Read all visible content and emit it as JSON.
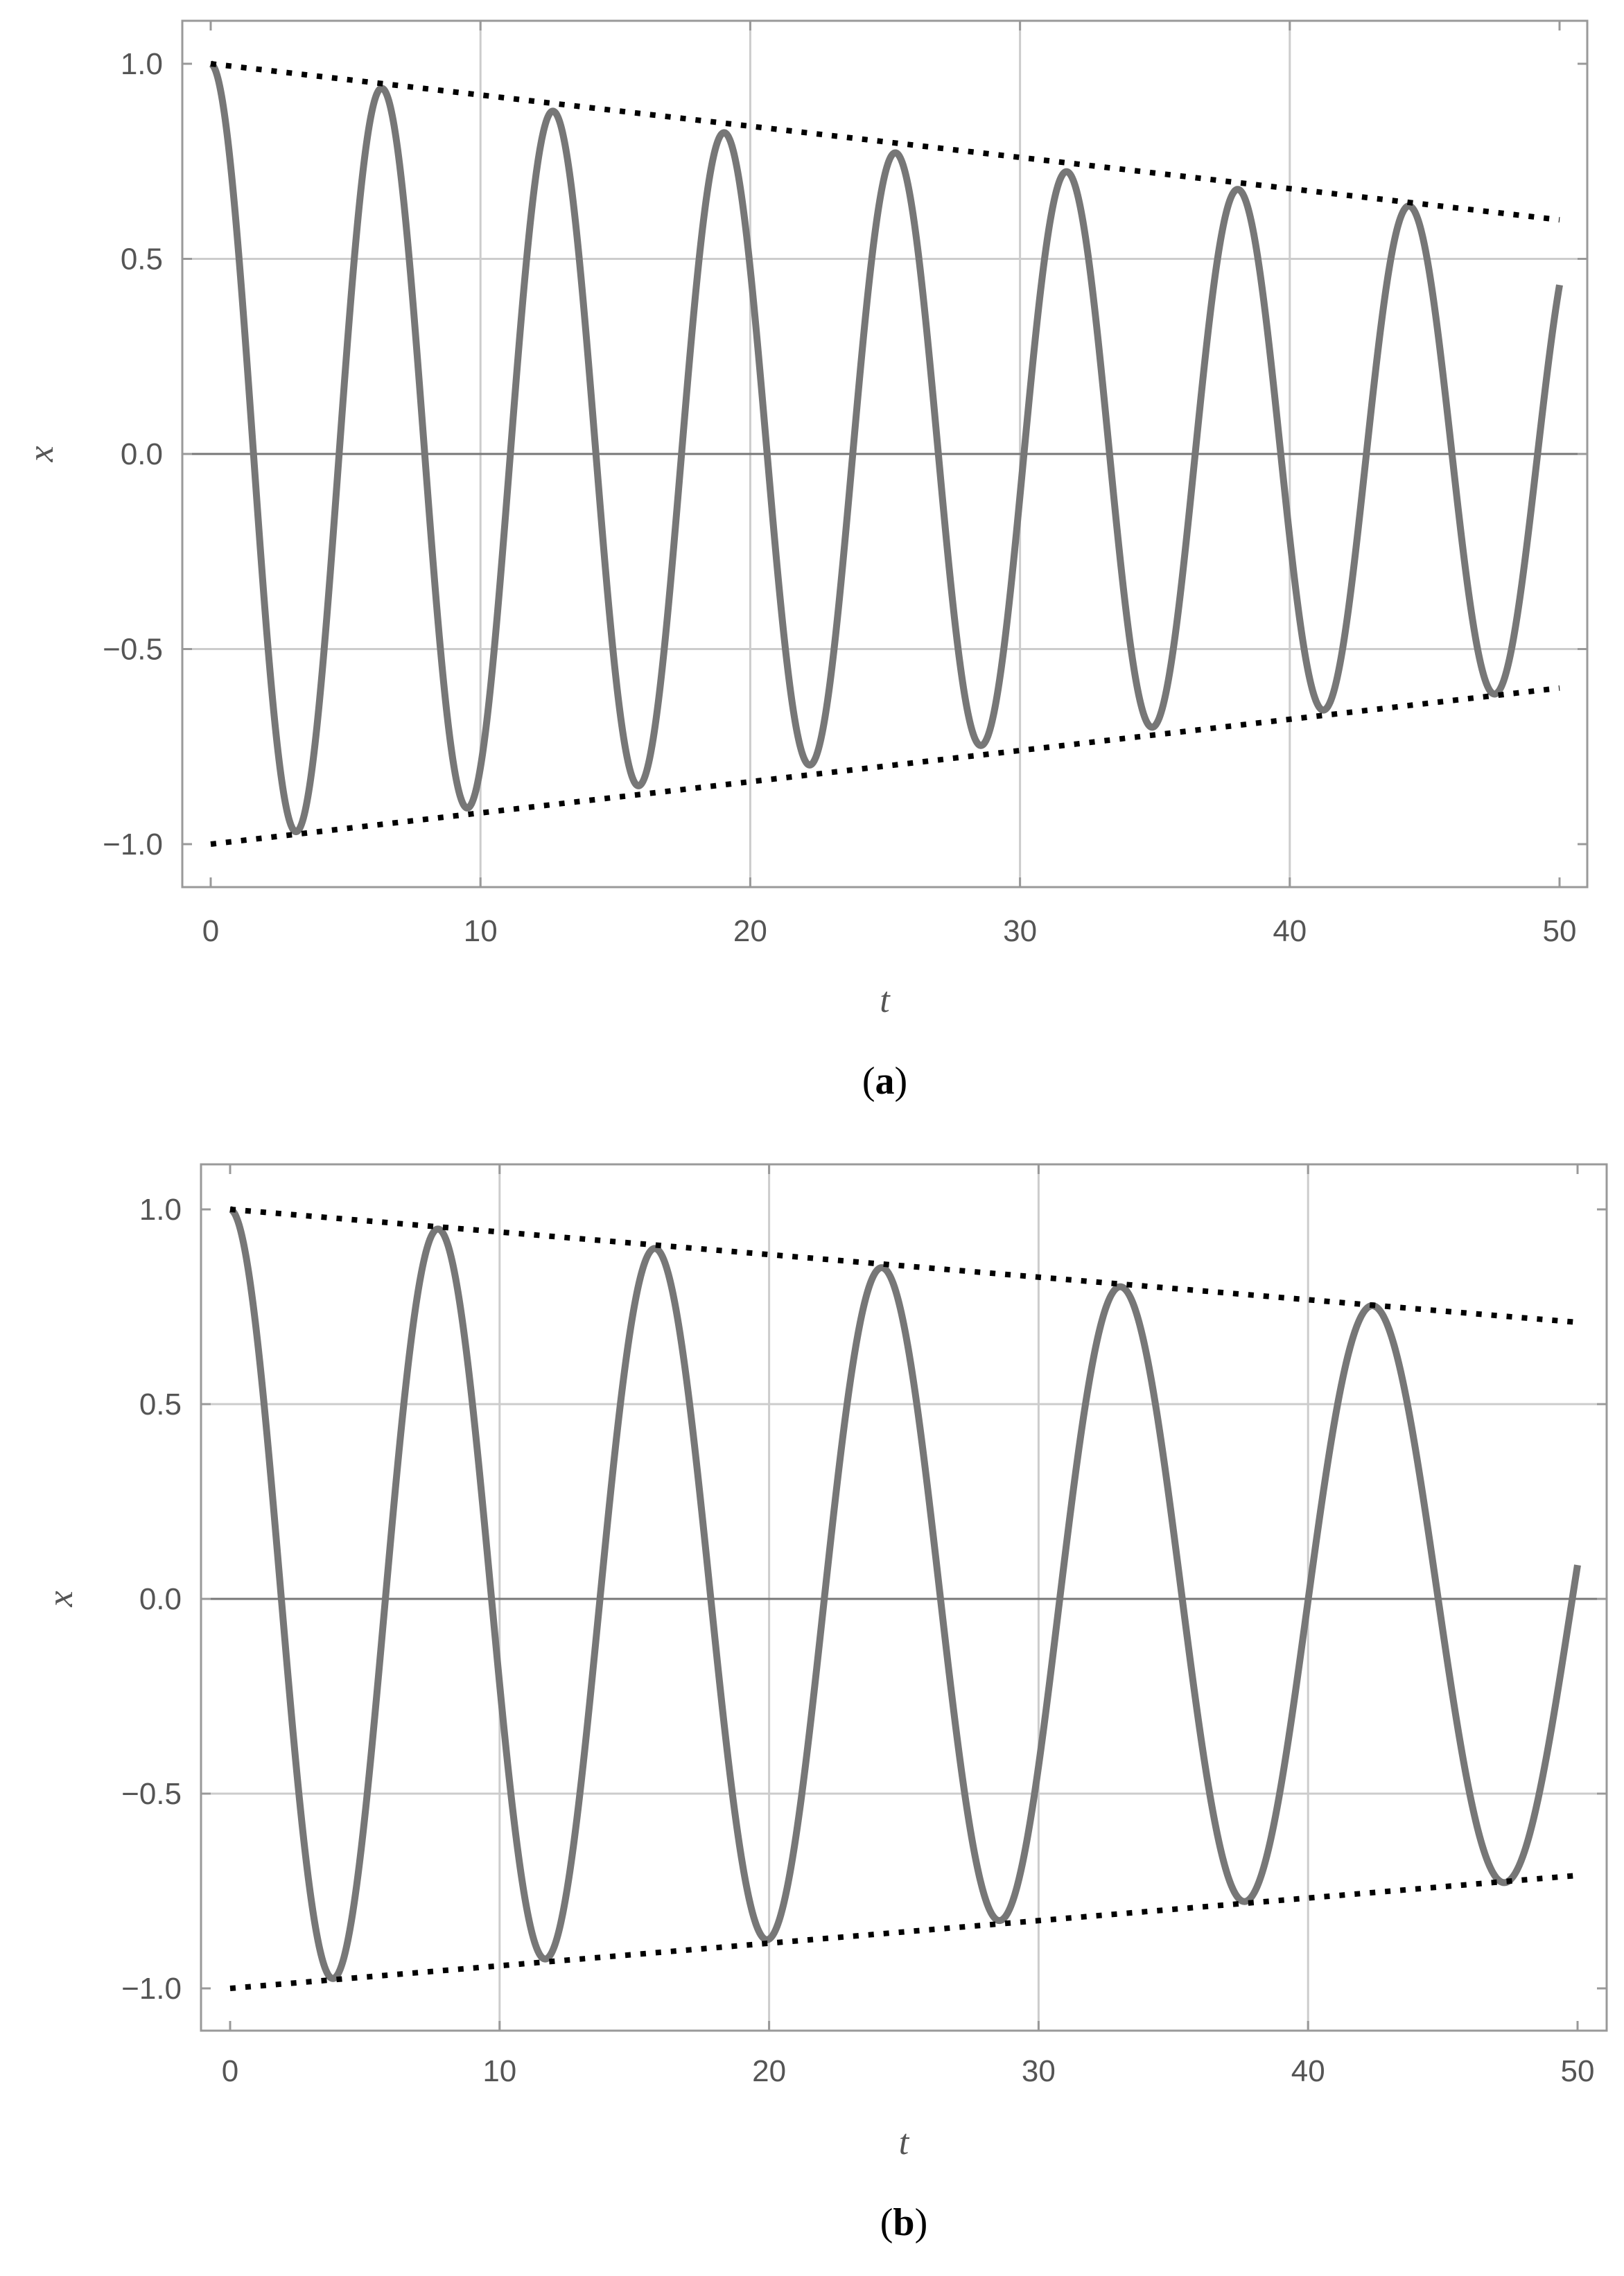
{
  "chart_data": [
    {
      "type": "line",
      "panel_label": {
        "open": "(",
        "letter": "a",
        "close": ")"
      },
      "xlabel": "t",
      "ylabel": "x",
      "xlim": [
        0,
        50
      ],
      "ylim": [
        -1.0,
        1.0
      ],
      "xticks": [
        "0",
        "10",
        "20",
        "30",
        "40",
        "50"
      ],
      "yticks": [
        "1.0",
        "0.5",
        "0.0",
        "−0.5",
        "−1.0"
      ],
      "xtick_values": [
        0,
        10,
        20,
        30,
        40,
        50
      ],
      "ytick_values": [
        1.0,
        0.5,
        0.0,
        -0.5,
        -1.0
      ],
      "grid": true,
      "series": [
        {
          "style": "solid",
          "color": "#777777",
          "model": "damped_cosine",
          "omega": 0.99,
          "decay": 0.0102,
          "t_range": [
            0,
            50
          ]
        },
        {
          "style": "dotted",
          "color": "#000000",
          "x": [
            0,
            50
          ],
          "y": [
            1.0,
            0.6
          ]
        },
        {
          "style": "dotted",
          "color": "#000000",
          "x": [
            0,
            50
          ],
          "y": [
            -1.0,
            -0.6
          ]
        }
      ]
    },
    {
      "type": "line",
      "panel_label": {
        "open": "(",
        "letter": "b",
        "close": ")"
      },
      "xlabel": "t",
      "ylabel": "x",
      "xlim": [
        0,
        50
      ],
      "ylim": [
        -1.0,
        1.0
      ],
      "xticks": [
        "0",
        "10",
        "20",
        "30",
        "40",
        "50"
      ],
      "yticks": [
        "1.0",
        "0.5",
        "0.0",
        "−0.5",
        "−1.0"
      ],
      "xtick_values": [
        0,
        10,
        20,
        30,
        40,
        50
      ],
      "ytick_values": [
        1.0,
        0.5,
        0.0,
        -0.5,
        -1.0
      ],
      "grid": true,
      "series": [
        {
          "style": "solid",
          "color": "#777777",
          "model": "damped_chirp",
          "omega0": 0.83,
          "omega_slope": -0.0042,
          "decay": 0.0067,
          "t_range": [
            0,
            50
          ]
        },
        {
          "style": "dotted",
          "color": "#000000",
          "x": [
            0,
            50
          ],
          "y": [
            1.0,
            0.71
          ]
        },
        {
          "style": "dotted",
          "color": "#000000",
          "x": [
            0,
            50
          ],
          "y": [
            -1.0,
            -0.71
          ]
        }
      ]
    }
  ]
}
